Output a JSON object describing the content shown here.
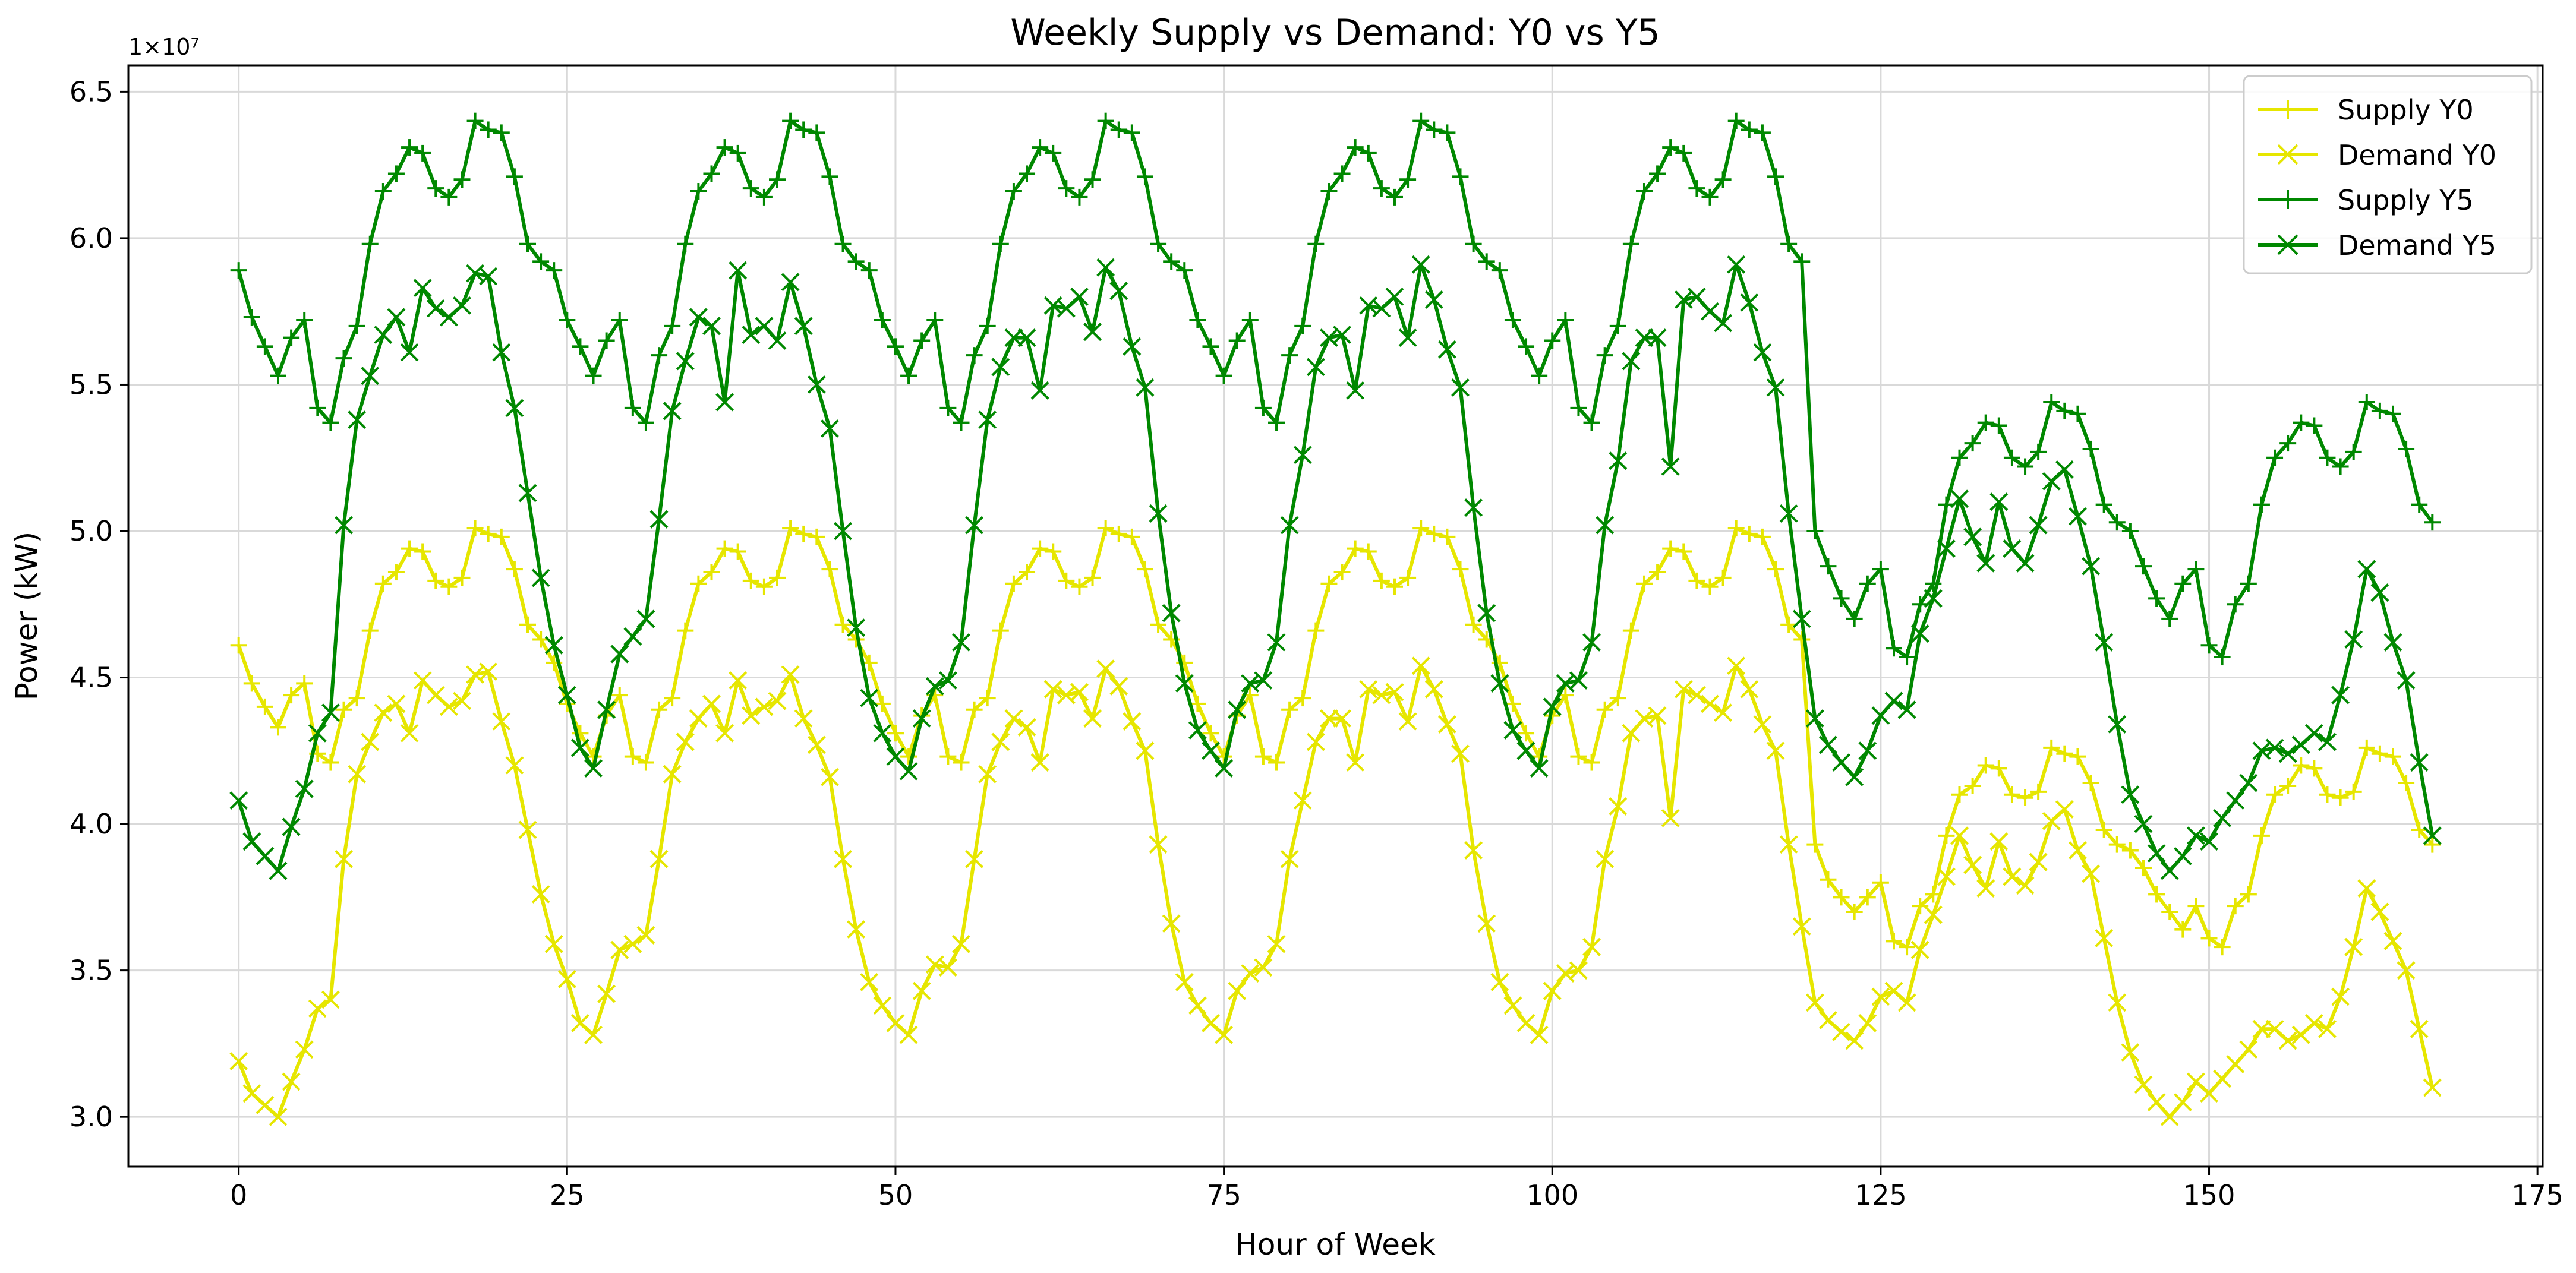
{
  "chart_data": {
    "type": "line",
    "title": "Weekly Supply vs Demand: Y0 vs Y5",
    "xlabel": "Hour of Week",
    "ylabel": "Power (kW)",
    "offset_label": "1×10⁷",
    "x_range": [
      -8.4,
      175.4
    ],
    "y_range": [
      28300000,
      65900000
    ],
    "x_ticks": [
      0,
      25,
      50,
      75,
      100,
      125,
      150,
      175
    ],
    "x_tick_labels": [
      "0",
      "25",
      "50",
      "75",
      "100",
      "125",
      "150",
      "175"
    ],
    "y_ticks": [
      30000000,
      35000000,
      40000000,
      45000000,
      50000000,
      55000000,
      60000000,
      65000000
    ],
    "y_tick_labels": [
      "3.0",
      "3.5",
      "4.0",
      "4.5",
      "5.0",
      "5.5",
      "6.0",
      "6.5"
    ],
    "grid": true,
    "legend_position": "top-right",
    "x": [
      0,
      1,
      2,
      3,
      4,
      5,
      6,
      7,
      8,
      9,
      10,
      11,
      12,
      13,
      14,
      15,
      16,
      17,
      18,
      19,
      20,
      21,
      22,
      23,
      24,
      25,
      26,
      27,
      28,
      29,
      30,
      31,
      32,
      33,
      34,
      35,
      36,
      37,
      38,
      39,
      40,
      41,
      42,
      43,
      44,
      45,
      46,
      47,
      48,
      49,
      50,
      51,
      52,
      53,
      54,
      55,
      56,
      57,
      58,
      59,
      60,
      61,
      62,
      63,
      64,
      65,
      66,
      67,
      68,
      69,
      70,
      71,
      72,
      73,
      74,
      75,
      76,
      77,
      78,
      79,
      80,
      81,
      82,
      83,
      84,
      85,
      86,
      87,
      88,
      89,
      90,
      91,
      92,
      93,
      94,
      95,
      96,
      97,
      98,
      99,
      100,
      101,
      102,
      103,
      104,
      105,
      106,
      107,
      108,
      109,
      110,
      111,
      112,
      113,
      114,
      115,
      116,
      117,
      118,
      119,
      120,
      121,
      122,
      123,
      124,
      125,
      126,
      127,
      128,
      129,
      130,
      131,
      132,
      133,
      134,
      135,
      136,
      137,
      138,
      139,
      140,
      141,
      142,
      143,
      144,
      145,
      146,
      147,
      148,
      149,
      150,
      151,
      152,
      153,
      154,
      155,
      156,
      157,
      158,
      159,
      160,
      161,
      162,
      163,
      164,
      165,
      166,
      167
    ],
    "series": [
      {
        "name": "Supply Y0",
        "color": "#e6e600",
        "marker": "plus",
        "values": [
          46.1,
          44.8,
          44.0,
          43.3,
          44.4,
          44.8,
          42.4,
          42.1,
          43.9,
          44.3,
          46.6,
          48.2,
          48.6,
          49.4,
          49.3,
          48.3,
          48.1,
          48.4,
          50.1,
          49.9,
          49.8,
          48.7,
          46.8,
          46.3,
          45.5,
          44.1,
          43.1,
          42.3,
          43.7,
          44.4,
          42.3,
          42.1,
          43.9,
          44.3,
          46.6,
          48.2,
          48.6,
          49.4,
          49.3,
          48.3,
          48.1,
          48.4,
          50.1,
          49.9,
          49.8,
          48.7,
          46.8,
          46.3,
          45.5,
          44.1,
          43.1,
          42.3,
          43.7,
          44.4,
          42.3,
          42.1,
          43.9,
          44.3,
          46.6,
          48.2,
          48.6,
          49.4,
          49.3,
          48.3,
          48.1,
          48.4,
          50.1,
          49.9,
          49.8,
          48.7,
          46.8,
          46.3,
          45.5,
          44.1,
          43.1,
          42.3,
          43.7,
          44.4,
          42.3,
          42.1,
          43.9,
          44.3,
          46.6,
          48.2,
          48.6,
          49.4,
          49.3,
          48.3,
          48.1,
          48.4,
          50.1,
          49.9,
          49.8,
          48.7,
          46.8,
          46.3,
          45.5,
          44.1,
          43.1,
          42.3,
          43.7,
          44.4,
          42.3,
          42.1,
          43.9,
          44.3,
          46.6,
          48.2,
          48.6,
          49.4,
          49.3,
          48.3,
          48.1,
          48.4,
          50.1,
          49.9,
          49.8,
          48.7,
          46.8,
          46.3,
          39.3,
          38.1,
          37.5,
          37.0,
          37.5,
          38.0,
          36.0,
          35.8,
          37.2,
          37.6,
          39.6,
          41.0,
          41.3,
          42.0,
          41.9,
          41.0,
          40.9,
          41.1,
          42.6,
          42.4,
          42.3,
          41.4,
          39.8,
          39.3,
          39.1,
          38.5,
          37.6,
          37.0,
          36.4,
          37.2,
          36.1,
          35.8,
          37.2,
          37.6,
          39.6,
          41.0,
          41.3,
          42.0,
          41.9,
          41.0,
          40.9,
          41.1,
          42.6,
          42.4,
          42.3,
          41.4,
          39.8,
          39.3
        ]
      },
      {
        "name": "Demand Y0",
        "color": "#e6e600",
        "marker": "x",
        "values": [
          31.9,
          30.8,
          30.4,
          30.0,
          31.2,
          32.3,
          33.7,
          34.0,
          38.8,
          41.7,
          42.8,
          43.8,
          44.1,
          43.1,
          44.9,
          44.4,
          44.0,
          44.2,
          45.1,
          45.2,
          43.5,
          42.0,
          39.8,
          37.6,
          35.9,
          34.7,
          33.2,
          32.8,
          34.2,
          35.7,
          35.9,
          36.2,
          38.8,
          41.7,
          42.8,
          43.6,
          44.1,
          43.1,
          44.9,
          43.7,
          44.0,
          44.2,
          45.1,
          43.6,
          42.7,
          41.6,
          38.8,
          36.4,
          34.6,
          33.8,
          33.2,
          32.8,
          34.3,
          35.2,
          35.1,
          35.9,
          38.8,
          41.7,
          42.8,
          43.6,
          43.3,
          42.1,
          44.6,
          44.4,
          44.5,
          43.6,
          45.3,
          44.7,
          43.5,
          42.5,
          39.3,
          36.6,
          34.6,
          33.8,
          33.2,
          32.8,
          34.3,
          34.9,
          35.1,
          35.9,
          38.8,
          40.8,
          42.8,
          43.6,
          43.6,
          42.1,
          44.6,
          44.4,
          44.5,
          43.5,
          45.4,
          44.6,
          43.4,
          42.4,
          39.1,
          36.6,
          34.6,
          33.8,
          33.2,
          32.8,
          34.3,
          34.9,
          35.0,
          35.8,
          38.8,
          40.6,
          43.1,
          43.6,
          43.7,
          40.2,
          44.6,
          44.4,
          44.1,
          43.8,
          45.4,
          44.6,
          43.4,
          42.5,
          39.3,
          36.5,
          33.9,
          33.3,
          32.9,
          32.6,
          33.2,
          34.1,
          34.3,
          33.9,
          35.7,
          36.9,
          38.2,
          39.6,
          38.6,
          37.8,
          39.4,
          38.2,
          37.9,
          38.7,
          40.1,
          40.5,
          39.1,
          38.3,
          36.1,
          33.9,
          32.2,
          31.1,
          30.5,
          30.0,
          30.5,
          31.2,
          30.8,
          31.3,
          31.8,
          32.3,
          33.0,
          33.0,
          32.6,
          32.8,
          33.2,
          33.0,
          34.1,
          35.8,
          37.8,
          37.0,
          36.0,
          35.0,
          33.0,
          31.0
        ]
      },
      {
        "name": "Supply Y5",
        "color": "#008800",
        "marker": "plus",
        "values": [
          58.9,
          57.3,
          56.3,
          55.3,
          56.6,
          57.2,
          54.2,
          53.7,
          55.9,
          57.0,
          59.8,
          61.6,
          62.2,
          63.1,
          62.9,
          61.7,
          61.4,
          62.0,
          64.0,
          63.7,
          63.6,
          62.1,
          59.8,
          59.2,
          58.9,
          57.2,
          56.3,
          55.3,
          56.5,
          57.2,
          54.2,
          53.7,
          56.0,
          57.0,
          59.8,
          61.6,
          62.2,
          63.1,
          62.9,
          61.7,
          61.4,
          62.0,
          64.0,
          63.7,
          63.6,
          62.1,
          59.8,
          59.2,
          58.9,
          57.2,
          56.3,
          55.3,
          56.5,
          57.2,
          54.2,
          53.7,
          56.0,
          57.0,
          59.8,
          61.6,
          62.2,
          63.1,
          62.9,
          61.7,
          61.4,
          62.0,
          64.0,
          63.7,
          63.6,
          62.1,
          59.8,
          59.2,
          58.9,
          57.2,
          56.3,
          55.3,
          56.5,
          57.2,
          54.2,
          53.7,
          56.0,
          57.0,
          59.8,
          61.6,
          62.2,
          63.1,
          62.9,
          61.7,
          61.4,
          62.0,
          64.0,
          63.7,
          63.6,
          62.1,
          59.8,
          59.2,
          58.9,
          57.2,
          56.3,
          55.3,
          56.5,
          57.2,
          54.2,
          53.7,
          56.0,
          57.0,
          59.8,
          61.6,
          62.2,
          63.1,
          62.9,
          61.7,
          61.4,
          62.0,
          64.0,
          63.7,
          63.6,
          62.1,
          59.8,
          59.2,
          50.0,
          48.8,
          47.7,
          47.0,
          48.2,
          48.7,
          46.0,
          45.7,
          47.5,
          48.2,
          50.9,
          52.5,
          53.0,
          53.7,
          53.6,
          52.5,
          52.2,
          52.7,
          54.4,
          54.1,
          54.0,
          52.8,
          50.9,
          50.3,
          50.0,
          48.8,
          47.7,
          47.0,
          48.2,
          48.7,
          46.1,
          45.7,
          47.5,
          48.2,
          50.9,
          52.5,
          53.0,
          53.7,
          53.6,
          52.5,
          52.2,
          52.7,
          54.4,
          54.1,
          54.0,
          52.8,
          50.9,
          50.3
        ]
      },
      {
        "name": "Demand Y5",
        "color": "#008800",
        "marker": "x",
        "values": [
          40.8,
          39.4,
          38.9,
          38.4,
          39.9,
          41.2,
          43.1,
          43.8,
          50.2,
          53.8,
          55.3,
          56.7,
          57.3,
          56.1,
          58.3,
          57.6,
          57.3,
          57.7,
          58.8,
          58.7,
          56.1,
          54.2,
          51.3,
          48.4,
          46.1,
          44.4,
          42.6,
          41.9,
          43.9,
          45.8,
          46.4,
          47.0,
          50.4,
          54.1,
          55.8,
          57.3,
          57.0,
          54.4,
          58.9,
          56.7,
          57.0,
          56.5,
          58.5,
          57.0,
          55.0,
          53.5,
          50.0,
          46.7,
          44.3,
          43.1,
          42.3,
          41.8,
          43.6,
          44.7,
          44.9,
          46.2,
          50.2,
          53.8,
          55.6,
          56.6,
          56.6,
          54.8,
          57.7,
          57.6,
          58.0,
          56.8,
          59.0,
          58.2,
          56.3,
          54.9,
          50.6,
          47.2,
          44.8,
          43.2,
          42.5,
          41.9,
          43.9,
          44.8,
          44.9,
          46.2,
          50.2,
          52.6,
          55.6,
          56.6,
          56.7,
          54.8,
          57.7,
          57.6,
          58.0,
          56.6,
          59.1,
          57.9,
          56.2,
          54.9,
          50.8,
          47.2,
          44.8,
          43.2,
          42.5,
          41.9,
          44.0,
          44.8,
          44.9,
          46.2,
          50.2,
          52.4,
          55.8,
          56.6,
          56.6,
          52.2,
          57.9,
          58.0,
          57.5,
          57.1,
          59.1,
          57.8,
          56.1,
          54.9,
          50.6,
          47.0,
          43.6,
          42.7,
          42.1,
          41.6,
          42.5,
          43.7,
          44.2,
          43.9,
          46.5,
          47.7,
          49.4,
          51.1,
          49.8,
          48.9,
          51.0,
          49.4,
          48.9,
          50.2,
          51.7,
          52.1,
          50.5,
          48.8,
          46.2,
          43.4,
          41.0,
          40.0,
          39.0,
          38.4,
          38.9,
          39.6,
          39.4,
          40.2,
          40.8,
          41.4,
          42.5,
          42.6,
          42.4,
          42.7,
          43.1,
          42.8,
          44.4,
          46.3,
          48.7,
          47.9,
          46.2,
          44.9,
          42.1,
          39.6
        ]
      }
    ]
  }
}
